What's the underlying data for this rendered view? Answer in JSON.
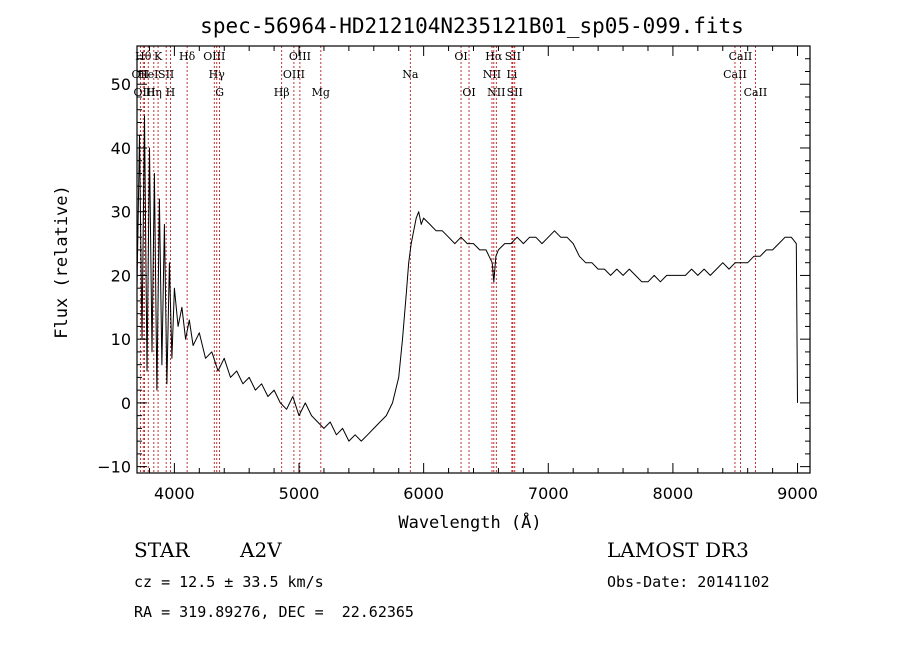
{
  "chart_data": {
    "type": "line",
    "title": "spec-56964-HD212104N235121B01_sp05-099.fits",
    "xlabel": "Wavelength (Å)",
    "ylabel": "Flux (relative)",
    "xlim": [
      3700,
      9100
    ],
    "ylim": [
      -11,
      56
    ],
    "xticks": [
      4000,
      5000,
      6000,
      7000,
      8000,
      9000
    ],
    "yticks": [
      -10,
      0,
      10,
      20,
      30,
      40,
      50
    ],
    "grid": false,
    "series": [
      {
        "x": [
          3700,
          3720,
          3740,
          3760,
          3780,
          3800,
          3820,
          3840,
          3860,
          3880,
          3900,
          3920,
          3940,
          3960,
          3980,
          4000,
          4030,
          4060,
          4090,
          4120,
          4150,
          4200,
          4250,
          4300,
          4350,
          4400,
          4450,
          4500,
          4550,
          4600,
          4650,
          4700,
          4750,
          4800,
          4850,
          4900,
          4950,
          5000,
          5050,
          5100,
          5150,
          5200,
          5250,
          5300,
          5350,
          5400,
          5450,
          5500,
          5550,
          5600,
          5650,
          5700,
          5750,
          5800,
          5830,
          5860,
          5880,
          5900,
          5920,
          5940,
          5960,
          5980,
          6000,
          6050,
          6100,
          6150,
          6200,
          6250,
          6300,
          6350,
          6400,
          6450,
          6500,
          6550,
          6563,
          6580,
          6600,
          6650,
          6700,
          6750,
          6800,
          6850,
          6900,
          6950,
          7000,
          7050,
          7100,
          7150,
          7200,
          7250,
          7300,
          7350,
          7400,
          7450,
          7500,
          7550,
          7600,
          7650,
          7700,
          7750,
          7800,
          7850,
          7900,
          7950,
          8000,
          8050,
          8100,
          8150,
          8200,
          8250,
          8300,
          8350,
          8400,
          8450,
          8500,
          8550,
          8600,
          8650,
          8700,
          8750,
          8800,
          8850,
          8900,
          8950,
          8990,
          9000
        ],
        "y": [
          18,
          42,
          10,
          45,
          5,
          40,
          8,
          36,
          2,
          32,
          6,
          28,
          3,
          22,
          7,
          18,
          12,
          15,
          10,
          13,
          9,
          11,
          7,
          8,
          5,
          7,
          4,
          5,
          3,
          4,
          2,
          3,
          1,
          2,
          0,
          -1,
          1,
          -2,
          0,
          -2,
          -3,
          -4,
          -3,
          -5,
          -4,
          -6,
          -5,
          -6,
          -5,
          -4,
          -3,
          -2,
          0,
          4,
          10,
          17,
          22,
          25,
          27,
          29,
          30,
          28,
          29,
          28,
          27,
          27,
          26,
          25,
          26,
          25,
          25,
          24,
          24,
          22,
          19,
          23,
          24,
          25,
          25,
          26,
          25,
          26,
          26,
          25,
          26,
          27,
          26,
          26,
          25,
          23,
          22,
          22,
          21,
          21,
          20,
          21,
          20,
          21,
          20,
          19,
          19,
          20,
          19,
          20,
          20,
          20,
          20,
          21,
          20,
          21,
          20,
          21,
          22,
          21,
          22,
          22,
          22,
          23,
          23,
          24,
          24,
          25,
          26,
          26,
          25,
          0
        ]
      }
    ],
    "line_markers": [
      {
        "name": "OII",
        "x": 3727,
        "row": 1
      },
      {
        "name": "Hθ",
        "x": 3750,
        "row": 0
      },
      {
        "name": "OIII",
        "x": 3760,
        "row": 2
      },
      {
        "name": "HeI",
        "x": 3790,
        "row": 1
      },
      {
        "name": "Hη",
        "x": 3835,
        "row": 2
      },
      {
        "name": "K",
        "x": 3869,
        "row": 0
      },
      {
        "name": "SII",
        "x": 3934,
        "row": 1
      },
      {
        "name": "H",
        "x": 3968,
        "row": 2
      },
      {
        "name": "Hδ",
        "x": 4102,
        "row": 0
      },
      {
        "name": "OIII",
        "x": 4320,
        "row": 0
      },
      {
        "name": "Hγ",
        "x": 4340,
        "row": 1
      },
      {
        "name": "G",
        "x": 4363,
        "row": 2
      },
      {
        "name": "Hβ",
        "x": 4861,
        "row": 2
      },
      {
        "name": "OIII",
        "x": 4959,
        "row": 1
      },
      {
        "name": "OIII",
        "x": 5007,
        "row": 0
      },
      {
        "name": "Mg",
        "x": 5175,
        "row": 2
      },
      {
        "name": "Na",
        "x": 5893,
        "row": 1
      },
      {
        "name": "OI",
        "x": 6300,
        "row": 0
      },
      {
        "name": "OI",
        "x": 6364,
        "row": 2
      },
      {
        "name": "NII",
        "x": 6548,
        "row": 1
      },
      {
        "name": "Hα",
        "x": 6563,
        "row": 0
      },
      {
        "name": "NII",
        "x": 6583,
        "row": 2
      },
      {
        "name": "Li",
        "x": 6708,
        "row": 1
      },
      {
        "name": "SII",
        "x": 6716,
        "row": 0
      },
      {
        "name": "SII",
        "x": 6731,
        "row": 2
      },
      {
        "name": "CaII",
        "x": 8498,
        "row": 1
      },
      {
        "name": "CaII",
        "x": 8542,
        "row": 0
      },
      {
        "name": "CaII",
        "x": 8662,
        "row": 2
      }
    ]
  },
  "info": {
    "object_type": "STAR",
    "subclass": "A2V",
    "survey": "LAMOST DR3",
    "cz_text": "cz = 12.5 ± 33.5 km/s",
    "obs_date": "Obs-Date: 20141102",
    "coords": "RA = 319.89276, DEC =  22.62365"
  },
  "colors": {
    "spectrum": "#000000",
    "marker_line": "#b30000",
    "axis": "#000000"
  }
}
